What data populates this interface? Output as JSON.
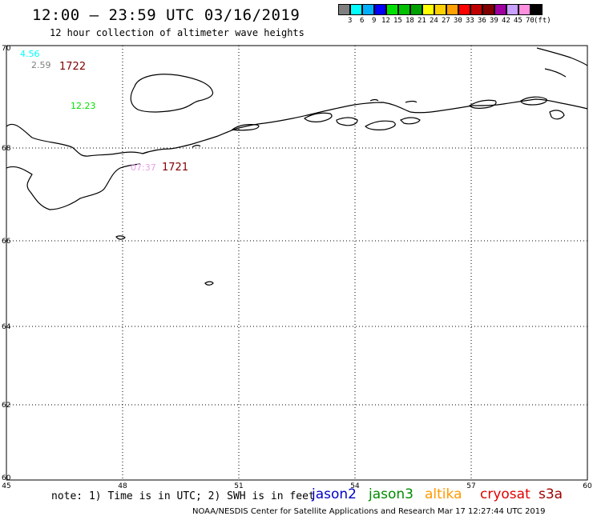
{
  "title": "12:00 — 23:59 UTC 03/16/2019",
  "subtitle": "12 hour collection of altimeter wave heights",
  "legend": {
    "unit": "(ft)",
    "colors": [
      "#7f7f7f",
      "#00ffff",
      "#00b0ff",
      "#0000ff",
      "#00e000",
      "#00c000",
      "#00a000",
      "#ffff00",
      "#ffd000",
      "#ffa000",
      "#ff0000",
      "#c00000",
      "#800000",
      "#a000a0",
      "#c8a0ff",
      "#ff90e0",
      "#000000"
    ],
    "labels": [
      "3",
      "6",
      "9",
      "12",
      "15",
      "18",
      "21",
      "24",
      "27",
      "30",
      "33",
      "36",
      "39",
      "42",
      "45",
      "70"
    ]
  },
  "map": {
    "lat_ticks": [
      "70",
      "68",
      "66",
      "64",
      "62",
      "60"
    ],
    "lon_ticks": [
      "45",
      "48",
      "51",
      "54",
      "57",
      "60"
    ],
    "observations": [
      {
        "text": "4.56",
        "color": "#00ffff"
      },
      {
        "text": "2.59",
        "color": "#7f7f7f"
      },
      {
        "text": "12.23",
        "color": "#00e000"
      },
      {
        "text": "07:37",
        "color": "#e8a0e8"
      }
    ],
    "pass_times": [
      {
        "text": "1722",
        "color": "#800000"
      },
      {
        "text": "1721",
        "color": "#800000"
      }
    ]
  },
  "footer": {
    "note": "note: 1) Time is in UTC; 2) SWH is in feet",
    "satellites": [
      {
        "name": "jason2",
        "color": "#0000c8"
      },
      {
        "name": "jason3",
        "color": "#008c00"
      },
      {
        "name": "altika",
        "color": "#ff9900"
      },
      {
        "name": "cryosat",
        "color": "#e00000"
      },
      {
        "name": "s3a",
        "color": "#a00000"
      }
    ],
    "credit": "NOAA/NESDIS Center for Satellite Applications and Research   Mar 17 12:27:44 UTC 2019"
  }
}
